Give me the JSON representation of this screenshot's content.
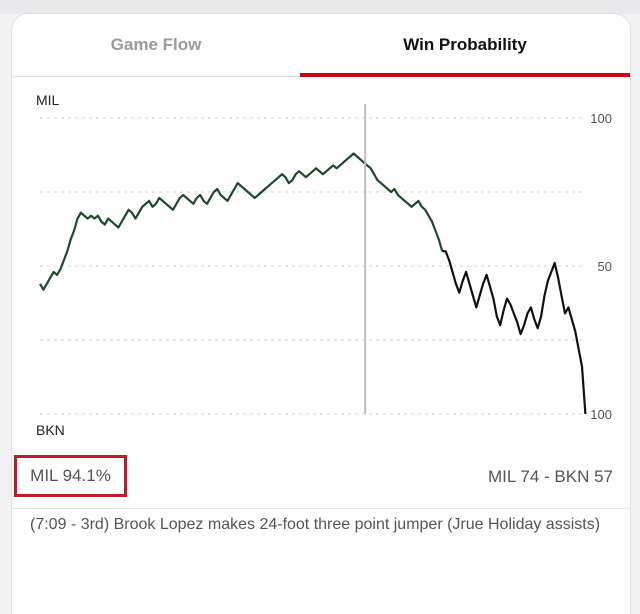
{
  "tabs": [
    {
      "label": "Game Flow",
      "active": false
    },
    {
      "label": "Win Probability",
      "active": true
    }
  ],
  "colors": {
    "accent": "#d0021b",
    "mil_line": "#1d4a2a",
    "bkn_line": "#111111",
    "highlight_box": "#c11b25"
  },
  "chart_data": {
    "type": "line",
    "team_top": "MIL",
    "team_bottom": "BKN",
    "y_tick_labels": [
      "100",
      "50",
      "100"
    ],
    "ylim": [
      -100,
      100
    ],
    "grid": true,
    "marker_fraction": 0.6,
    "series": [
      {
        "name": "MIL",
        "color": "#1d4a2a",
        "values": [
          -12,
          -16,
          -12,
          -8,
          -4,
          -6,
          -2,
          4,
          10,
          18,
          24,
          32,
          36,
          34,
          32,
          34,
          32,
          34,
          30,
          28,
          32,
          30,
          28,
          26,
          30,
          34,
          38,
          36,
          32,
          36,
          40,
          42,
          44,
          40,
          42,
          46,
          44,
          42,
          40,
          38,
          42,
          46,
          48,
          46,
          44,
          42,
          46,
          48,
          44,
          42,
          46,
          50,
          52,
          48,
          46,
          44,
          48,
          52,
          56,
          54,
          52,
          50,
          48,
          46,
          48,
          50,
          52,
          54,
          56,
          58,
          60,
          62,
          60,
          56,
          58,
          62,
          64,
          62,
          60,
          62,
          64,
          66,
          64,
          62,
          64,
          66,
          68,
          66,
          68,
          70,
          72,
          74,
          76,
          74,
          72,
          70,
          68,
          66,
          62,
          58,
          56,
          54,
          52,
          50,
          52,
          48,
          46,
          44,
          42,
          40,
          42,
          44,
          40,
          38,
          34,
          30,
          24,
          18,
          10
        ]
      },
      {
        "name": "BKN",
        "color": "#111111",
        "values": [
          10,
          4,
          -4,
          -12,
          -18,
          -10,
          -4,
          -12,
          -20,
          -28,
          -20,
          -12,
          -6,
          -14,
          -22,
          -34,
          -40,
          -30,
          -22,
          -26,
          -32,
          -38,
          -46,
          -40,
          -32,
          -28,
          -36,
          -42,
          -34,
          -20,
          -10,
          -4,
          2,
          -8,
          -20,
          -32,
          -28,
          -36,
          -44,
          -56,
          -68,
          -100
        ]
      }
    ]
  },
  "status": {
    "win_prob_label": "MIL 94.1%",
    "score_label": "MIL 74  - BKN 57"
  },
  "play": {
    "description": "(7:09 - 3rd) Brook Lopez makes 24-foot three point jumper (Jrue Holiday assists)"
  }
}
